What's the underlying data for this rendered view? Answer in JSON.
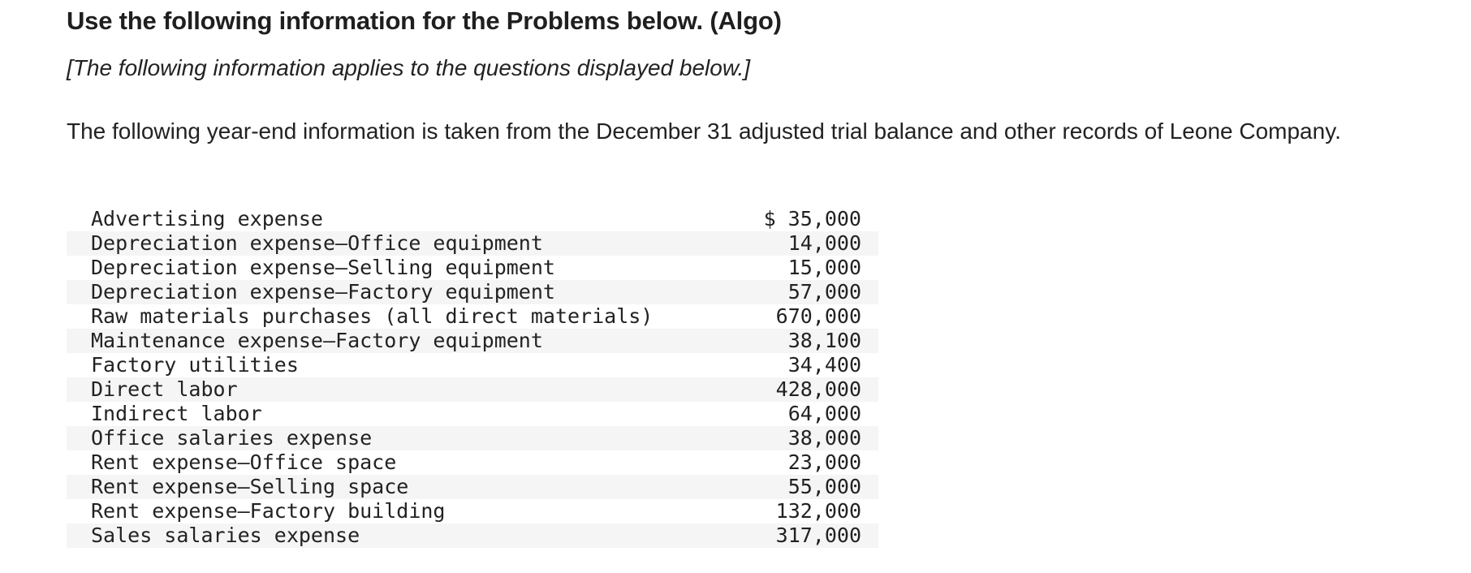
{
  "header": {
    "title": "Use the following information for the Problems below. (Algo)",
    "subtitle": "[The following information applies to the questions displayed below.]"
  },
  "intro": {
    "text": "The following year-end information is taken from the December 31 adjusted trial balance and other records of Leone Company."
  },
  "ledger": {
    "currency_symbol": "$",
    "rows": [
      {
        "label": "Advertising expense",
        "amount": "$ 35,000"
      },
      {
        "label": "Depreciation expense—Office equipment",
        "amount": "14,000"
      },
      {
        "label": "Depreciation expense—Selling equipment",
        "amount": "15,000"
      },
      {
        "label": "Depreciation expense—Factory equipment",
        "amount": "57,000"
      },
      {
        "label": "Raw materials purchases (all direct materials)",
        "amount": "670,000"
      },
      {
        "label": "Maintenance expense—Factory equipment",
        "amount": "38,100"
      },
      {
        "label": "Factory utilities",
        "amount": "34,400"
      },
      {
        "label": "Direct labor",
        "amount": "428,000"
      },
      {
        "label": "Indirect labor",
        "amount": "64,000"
      },
      {
        "label": "Office salaries expense",
        "amount": "38,000"
      },
      {
        "label": "Rent expense—Office space",
        "amount": "23,000"
      },
      {
        "label": "Rent expense—Selling space",
        "amount": "55,000"
      },
      {
        "label": "Rent expense—Factory building",
        "amount": "132,000"
      },
      {
        "label": "Sales salaries expense",
        "amount": "317,000"
      }
    ]
  },
  "colors": {
    "text": "#222222",
    "stripe": "#f5f5f5",
    "background": "#ffffff"
  }
}
